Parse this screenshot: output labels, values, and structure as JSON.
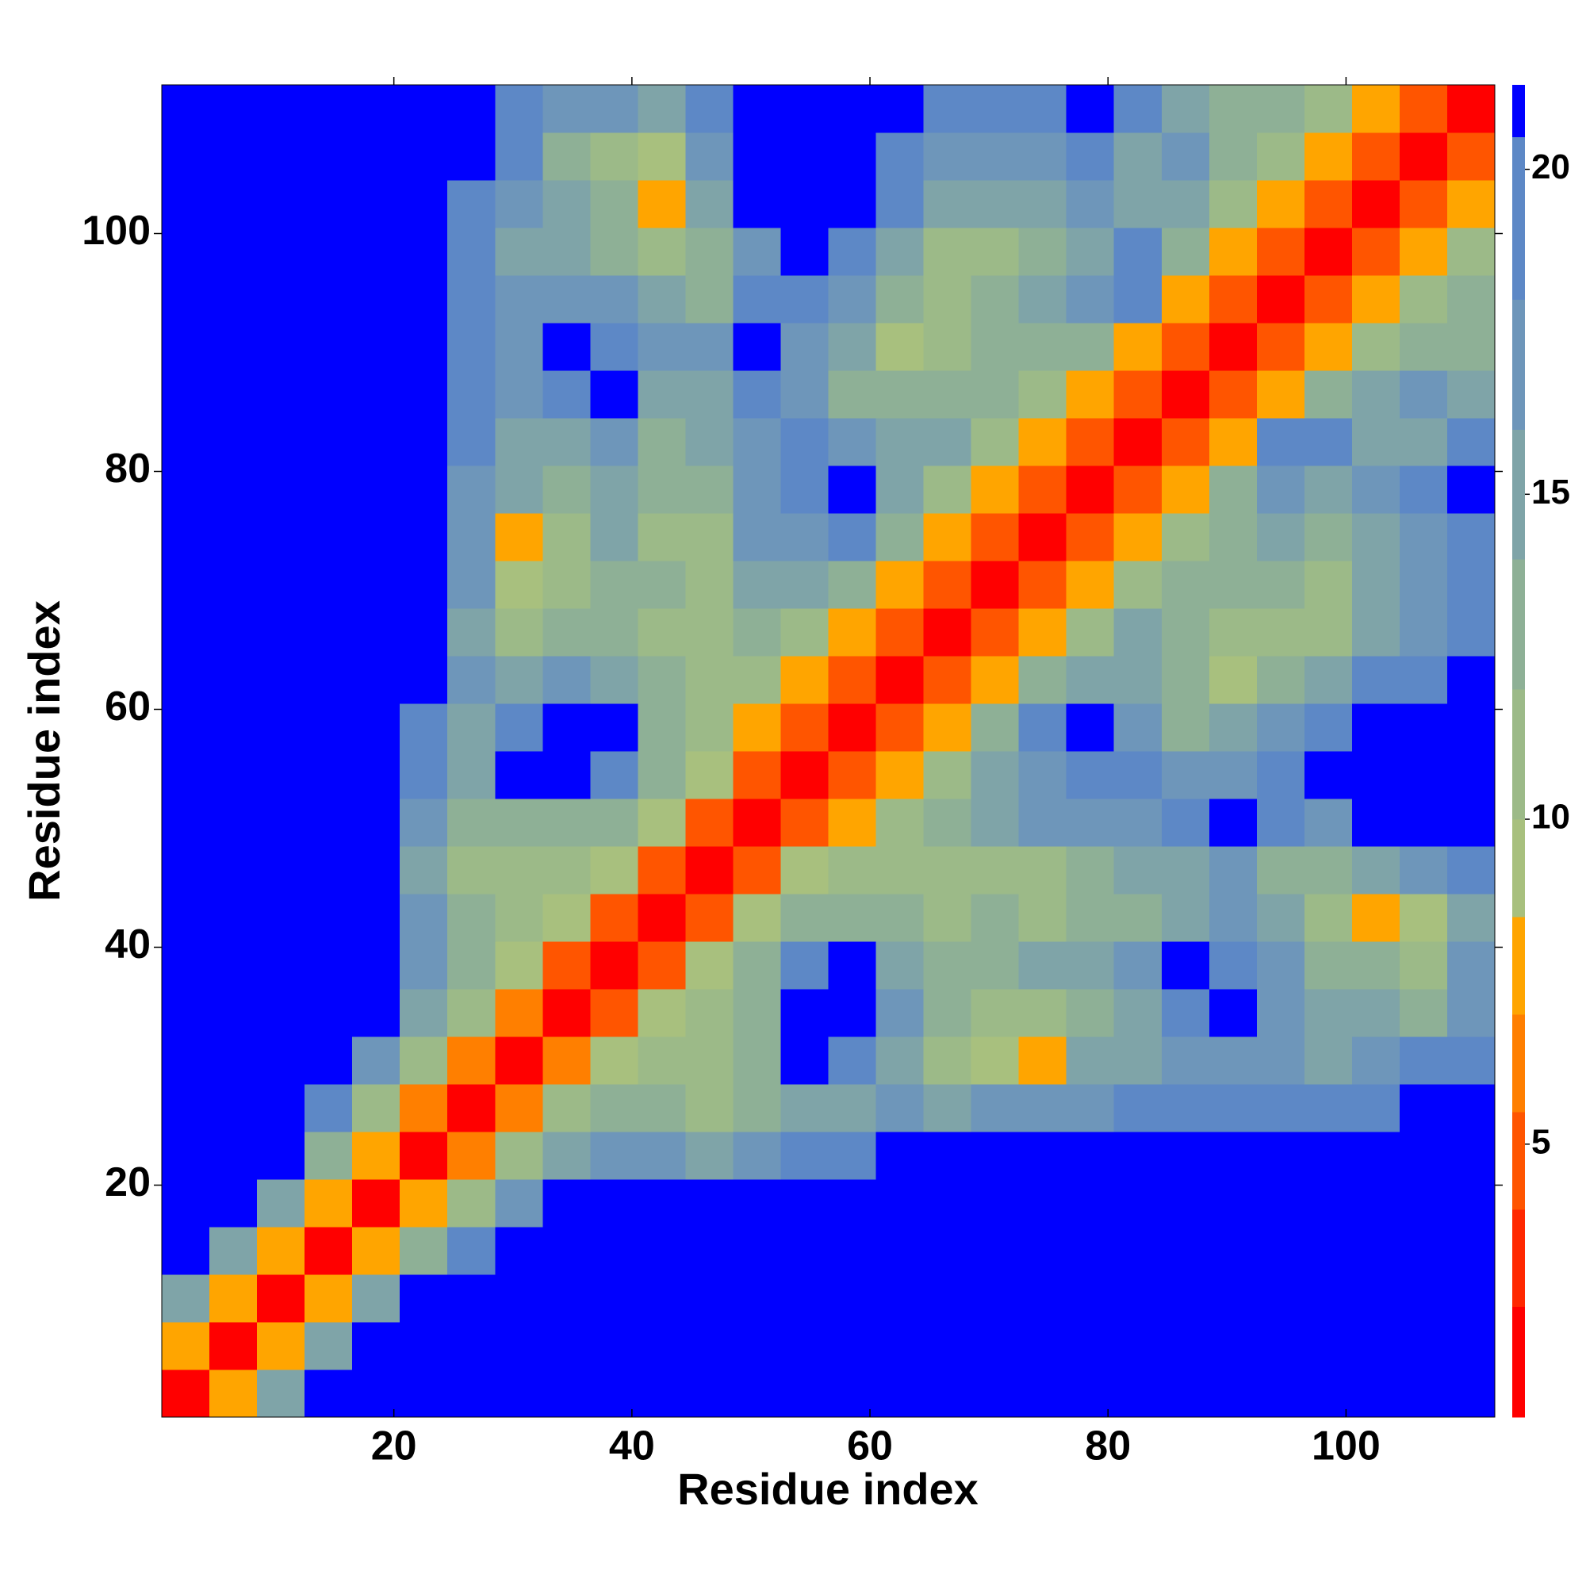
{
  "chart_data": {
    "type": "heatmap",
    "xlabel": "Residue index",
    "ylabel": "Residue index",
    "xlim": [
      0.5,
      112.5
    ],
    "ylim": [
      0.5,
      112.5
    ],
    "xticks": [
      20,
      40,
      60,
      80,
      100
    ],
    "yticks": [
      20,
      40,
      60,
      80,
      100
    ],
    "x_bins": [
      0.5,
      4.5,
      8.5,
      12.5,
      16.5,
      20.5,
      24.5,
      28.5,
      32.5,
      36.5,
      40.5,
      44.5,
      48.5,
      52.5,
      56.5,
      60.5,
      64.5,
      68.5,
      72.5,
      76.5,
      80.5,
      84.5,
      88.5,
      92.5,
      96.5,
      100.5,
      104.5,
      108.5,
      112.5
    ],
    "y_bins": [
      0.5,
      4.5,
      8.5,
      12.5,
      16.5,
      20.5,
      24.5,
      28.5,
      32.5,
      36.5,
      40.5,
      44.5,
      48.5,
      52.5,
      56.5,
      60.5,
      64.5,
      68.5,
      72.5,
      76.5,
      80.5,
      84.5,
      88.5,
      92.5,
      96.5,
      100.5,
      104.5,
      108.5,
      112.5
    ],
    "colorbar": {
      "bounds": [
        0.8,
        2.5,
        4,
        5.5,
        7,
        8.5,
        10,
        12,
        14,
        16,
        18,
        20.5,
        21.3
      ],
      "colors": [
        "#ff0000",
        "#ff2800",
        "#ff5500",
        "#ff7f00",
        "#ffa500",
        "#a8c07e",
        "#9cba88",
        "#8eb096",
        "#7fa4a8",
        "#6e96ba",
        "#5d88c6",
        "#0000ff"
      ],
      "ticks": [
        5,
        10,
        15,
        20
      ]
    },
    "values": [
      [
        2,
        7,
        14,
        21,
        21,
        21,
        21,
        21,
        21,
        21,
        21,
        21,
        21,
        21,
        21,
        21,
        21,
        21,
        21,
        21,
        21,
        21,
        21,
        21,
        21,
        21,
        21,
        21
      ],
      [
        7,
        2,
        7,
        14,
        21,
        21,
        21,
        21,
        21,
        21,
        21,
        21,
        21,
        21,
        21,
        21,
        21,
        21,
        21,
        21,
        21,
        21,
        21,
        21,
        21,
        21,
        21,
        21
      ],
      [
        14,
        7,
        2,
        7,
        14,
        21,
        21,
        21,
        21,
        21,
        21,
        21,
        21,
        21,
        21,
        21,
        21,
        21,
        21,
        21,
        21,
        21,
        21,
        21,
        21,
        21,
        21,
        21
      ],
      [
        21,
        14,
        7,
        2,
        7,
        13,
        18,
        21,
        21,
        21,
        21,
        21,
        21,
        21,
        21,
        21,
        21,
        21,
        21,
        21,
        21,
        21,
        21,
        21,
        21,
        21,
        21,
        21
      ],
      [
        21,
        21,
        14,
        7,
        2,
        7,
        11,
        16,
        21,
        21,
        21,
        21,
        21,
        21,
        21,
        21,
        21,
        21,
        21,
        21,
        21,
        21,
        21,
        21,
        21,
        21,
        21,
        21
      ],
      [
        21,
        21,
        21,
        13,
        7,
        2,
        6,
        11,
        15,
        17,
        16,
        15,
        17,
        18,
        19,
        21,
        21,
        21,
        21,
        21,
        21,
        21,
        21,
        21,
        21,
        21,
        21,
        21
      ],
      [
        21,
        21,
        21,
        18,
        11,
        6,
        2,
        6,
        10,
        12,
        13,
        11,
        12,
        14,
        15,
        16,
        15,
        16,
        17,
        17,
        18,
        19,
        19,
        18,
        18,
        20,
        21,
        21
      ],
      [
        21,
        21,
        21,
        21,
        16,
        11,
        6,
        2,
        6,
        9,
        11,
        10,
        12,
        21,
        20,
        14,
        11,
        9,
        7,
        14,
        15,
        16,
        17,
        16,
        15,
        16,
        18,
        20
      ],
      [
        21,
        21,
        21,
        21,
        21,
        15,
        10,
        6,
        2,
        5,
        9,
        11,
        12,
        21,
        21,
        16,
        12,
        11,
        10,
        13,
        14,
        20,
        21,
        17,
        15,
        14,
        13,
        17
      ],
      [
        21,
        21,
        21,
        21,
        21,
        17,
        12,
        9,
        5,
        2,
        5,
        9,
        12,
        19,
        21,
        15,
        12,
        13,
        14,
        15,
        16,
        21,
        20,
        16,
        13,
        12,
        10,
        16
      ],
      [
        21,
        21,
        21,
        21,
        21,
        16,
        13,
        11,
        9,
        5,
        2,
        5,
        9,
        12,
        13,
        12,
        11,
        12,
        10,
        12,
        13,
        15,
        16,
        14,
        10,
        8,
        9,
        15
      ],
      [
        21,
        21,
        21,
        21,
        21,
        15,
        11,
        10,
        11,
        9,
        5,
        2,
        5,
        9,
        11,
        10,
        11,
        10,
        11,
        12,
        14,
        15,
        17,
        13,
        12,
        14,
        17,
        19
      ],
      [
        21,
        21,
        21,
        21,
        21,
        17,
        12,
        12,
        12,
        12,
        9,
        5,
        2,
        5,
        8,
        11,
        12,
        14,
        16,
        17,
        16,
        18,
        21,
        20,
        17,
        21,
        21,
        21
      ],
      [
        21,
        21,
        21,
        21,
        21,
        18,
        14,
        21,
        21,
        19,
        12,
        9,
        5,
        2,
        5,
        8,
        11,
        15,
        17,
        19,
        18,
        17,
        16,
        19,
        21,
        21,
        21,
        21
      ],
      [
        21,
        21,
        21,
        21,
        21,
        19,
        15,
        20,
        21,
        21,
        13,
        11,
        8,
        5,
        2,
        5,
        8,
        12,
        20,
        21,
        17,
        13,
        14,
        16,
        20,
        21,
        21,
        21
      ],
      [
        21,
        21,
        21,
        21,
        21,
        21,
        16,
        14,
        16,
        15,
        12,
        10,
        11,
        8,
        5,
        2,
        5,
        8,
        12,
        14,
        15,
        12,
        9,
        12,
        15,
        19,
        18,
        21
      ],
      [
        21,
        21,
        21,
        21,
        21,
        21,
        15,
        11,
        12,
        12,
        11,
        11,
        12,
        11,
        8,
        5,
        2,
        5,
        8,
        11,
        14,
        13,
        11,
        10,
        11,
        15,
        17,
        20
      ],
      [
        21,
        21,
        21,
        21,
        21,
        21,
        16,
        9,
        11,
        13,
        12,
        10,
        14,
        15,
        12,
        8,
        5,
        2,
        5,
        8,
        11,
        13,
        12,
        13,
        10,
        14,
        16,
        19
      ],
      [
        21,
        21,
        21,
        21,
        21,
        21,
        17,
        7,
        10,
        14,
        10,
        11,
        16,
        17,
        20,
        12,
        8,
        5,
        2,
        5,
        7,
        11,
        13,
        15,
        13,
        15,
        17,
        20
      ],
      [
        21,
        21,
        21,
        21,
        21,
        21,
        17,
        14,
        13,
        15,
        12,
        12,
        17,
        19,
        21,
        14,
        11,
        8,
        5,
        2,
        5,
        8,
        12,
        16,
        14,
        16,
        18,
        21
      ],
      [
        21,
        21,
        21,
        21,
        21,
        21,
        18,
        15,
        14,
        16,
        13,
        14,
        16,
        18,
        17,
        15,
        14,
        11,
        7,
        5,
        2,
        5,
        8,
        20,
        19,
        15,
        15,
        18
      ],
      [
        21,
        21,
        21,
        21,
        21,
        21,
        19,
        16,
        20,
        21,
        15,
        15,
        18,
        17,
        13,
        12,
        13,
        13,
        11,
        8,
        5,
        2,
        5,
        8,
        12,
        14,
        16,
        15
      ],
      [
        21,
        21,
        21,
        21,
        21,
        21,
        19,
        17,
        21,
        20,
        16,
        17,
        21,
        16,
        14,
        9,
        11,
        12,
        13,
        12,
        8,
        5,
        2,
        5,
        8,
        11,
        13,
        13
      ],
      [
        21,
        21,
        21,
        21,
        21,
        21,
        18,
        16,
        17,
        16,
        14,
        13,
        20,
        19,
        16,
        12,
        10,
        13,
        15,
        16,
        20,
        8,
        5,
        2,
        5,
        8,
        11,
        13
      ],
      [
        21,
        21,
        21,
        21,
        21,
        21,
        18,
        15,
        15,
        13,
        10,
        12,
        17,
        21,
        20,
        15,
        11,
        10,
        13,
        14,
        19,
        12,
        8,
        5,
        2,
        5,
        8,
        11
      ],
      [
        21,
        21,
        21,
        21,
        21,
        21,
        20,
        16,
        14,
        12,
        8,
        14,
        21,
        21,
        21,
        19,
        15,
        14,
        15,
        16,
        15,
        14,
        11,
        8,
        5,
        2,
        5,
        8
      ],
      [
        21,
        21,
        21,
        21,
        21,
        21,
        21,
        18,
        13,
        10,
        9,
        17,
        21,
        21,
        21,
        18,
        17,
        16,
        17,
        18,
        15,
        16,
        13,
        11,
        8,
        5,
        2,
        5
      ],
      [
        21,
        21,
        21,
        21,
        21,
        21,
        21,
        20,
        17,
        16,
        15,
        19,
        21,
        21,
        21,
        21,
        20,
        19,
        20,
        21,
        18,
        15,
        13,
        13,
        11,
        8,
        5,
        2
      ]
    ]
  }
}
